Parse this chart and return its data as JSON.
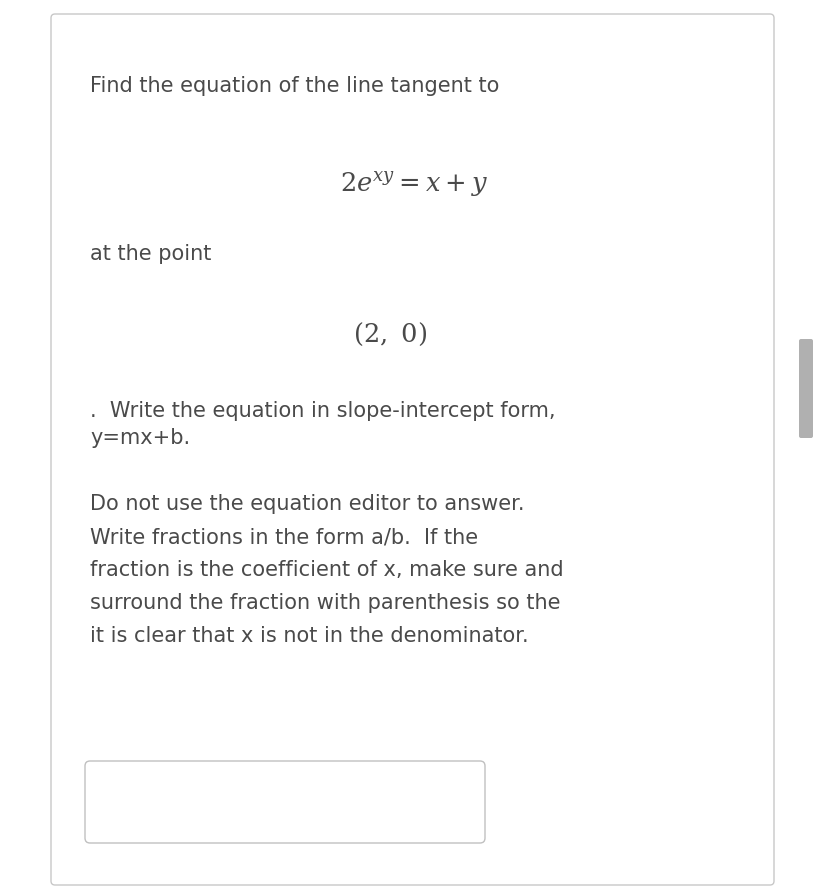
{
  "bg_color": "#ffffff",
  "border_color": "#c8c8c8",
  "text_color": "#4a4a4a",
  "line1": "Find the equation of the line tangent to",
  "equation": "$2e^{xy} = x + y$",
  "line3": "at the point",
  "point": "$(2,\\ 0)$",
  "line5a": ".  Write the equation in slope-intercept form,",
  "line5b": "y=mx+b.",
  "line6a": "Do not use the equation editor to answer.",
  "line6b": "Write fractions in the form a/b.  If the",
  "line6c": "fraction is the coefficient of x, make sure and",
  "line6d": "surround the fraction with parenthesis so the",
  "line6e": "it is clear that x is not in the denominator.",
  "scrollbar_color": "#b0b0b0",
  "answer_box_color": "#c0c0c0",
  "main_font_size": 15.0,
  "eq_font_size": 18.5
}
